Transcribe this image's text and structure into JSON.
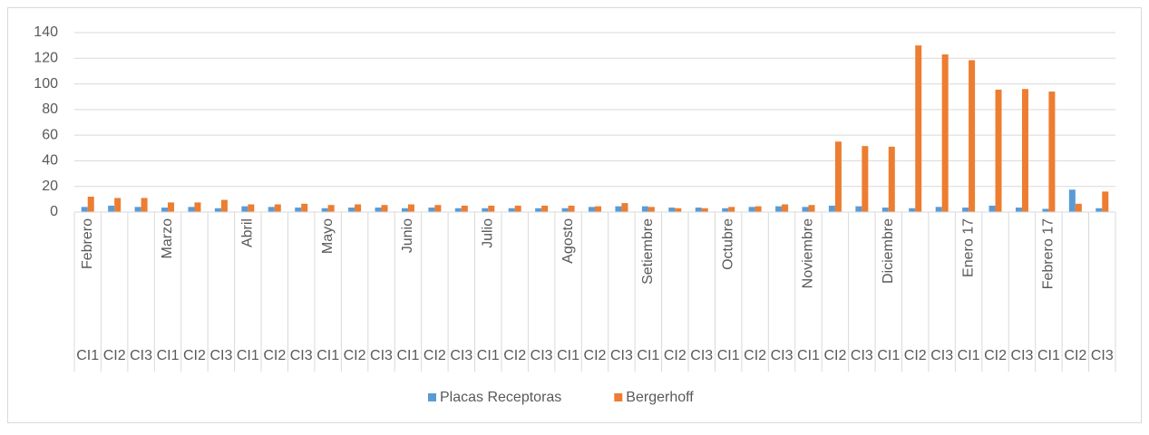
{
  "chart_data": {
    "type": "bar",
    "groups": [
      "Febrero",
      "Marzo",
      "Abril",
      "Mayo",
      "Junio",
      "Julio",
      "Agosto",
      "Setiembre",
      "Octubre",
      "Noviembre",
      "Diciembre",
      "Enero 17",
      "Febrero 17"
    ],
    "categories": [
      "CI1",
      "CI2",
      "CI3",
      "CI1",
      "CI2",
      "CI3",
      "CI1",
      "CI2",
      "CI3",
      "CI1",
      "CI2",
      "CI3",
      "CI1",
      "CI2",
      "CI3",
      "CI1",
      "CI2",
      "CI3",
      "CI1",
      "CI2",
      "CI3",
      "CI1",
      "CI2",
      "CI3",
      "CI1",
      "CI2",
      "CI3",
      "CI1",
      "CI2",
      "CI3",
      "CI1",
      "CI2",
      "CI3",
      "CI1",
      "CI2",
      "CI3",
      "CI1",
      "CI2",
      "CI3"
    ],
    "series": [
      {
        "name": "Placas Receptoras",
        "color": "#5b9bd5",
        "values": [
          4,
          5,
          4,
          3.5,
          4,
          3,
          4.5,
          4,
          3.5,
          3,
          3.5,
          3.5,
          3,
          3.5,
          3,
          3,
          3,
          3,
          3,
          4,
          4.5,
          4.5,
          3.5,
          3.5,
          3,
          4,
          4.5,
          4,
          5,
          4.5,
          3.5,
          3,
          4,
          3.5,
          5,
          3.5,
          2.5,
          17.5,
          3
        ]
      },
      {
        "name": "Bergerhoff",
        "color": "#ed7d31",
        "values": [
          12,
          11,
          11,
          7.5,
          7.5,
          9.5,
          6,
          6,
          6.5,
          5.5,
          6,
          5.5,
          6,
          5.5,
          5,
          5,
          5,
          5,
          5,
          4.5,
          7,
          4,
          3,
          3,
          4,
          4.5,
          6,
          5.5,
          55,
          51.5,
          51,
          130,
          123,
          118.5,
          95.5,
          96,
          94,
          6.5,
          16
        ]
      }
    ],
    "ylim": [
      0,
      140
    ],
    "yticks": [
      0,
      20,
      40,
      60,
      80,
      100,
      120,
      140
    ],
    "grid": true
  }
}
